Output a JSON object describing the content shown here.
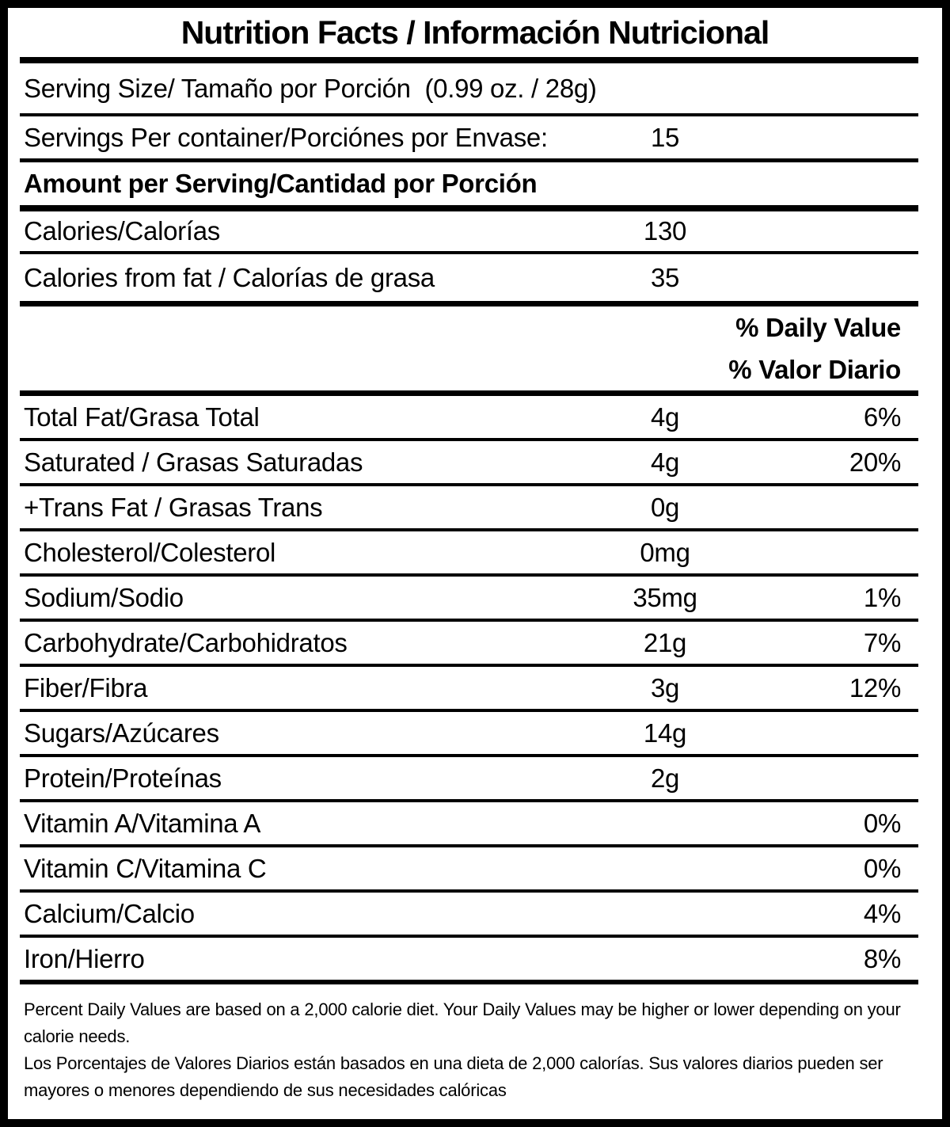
{
  "title": "Nutrition Facts / Información Nutricional",
  "serving": {
    "size_line": "Serving Size/ Tamaño por Porción  (0.99 oz. / 28g)",
    "per_container_label": "Servings Per container/Porciónes por Envase:",
    "per_container_value": "15"
  },
  "amount_per_serving_header": "Amount per Serving/Cantidad por Porción",
  "calories": {
    "label": "Calories/Calorías",
    "value": "130"
  },
  "calories_from_fat": {
    "label": "Calories from fat / Calorías de grasa",
    "value": "35"
  },
  "daily_value_header": {
    "line1": "% Daily Value",
    "line2": "% Valor Diario"
  },
  "nutrients": [
    {
      "label": "Total Fat/Grasa Total",
      "amount": "4g",
      "dv": "6%"
    },
    {
      "label": "Saturated / Grasas Saturadas",
      "amount": "4g",
      "dv": "20%"
    },
    {
      "label": "+Trans Fat / Grasas Trans",
      "amount": "0g",
      "dv": ""
    },
    {
      "label": "Cholesterol/Colesterol",
      "amount": "0mg",
      "dv": ""
    },
    {
      "label": "Sodium/Sodio",
      "amount": "35mg",
      "dv": "1%"
    },
    {
      "label": "Carbohydrate/Carbohidratos",
      "amount": "21g",
      "dv": "7%"
    },
    {
      "label": "Fiber/Fibra",
      "amount": "3g",
      "dv": "12%"
    },
    {
      "label": "Sugars/Azúcares",
      "amount": "14g",
      "dv": ""
    },
    {
      "label": "Protein/Proteínas",
      "amount": "2g",
      "dv": ""
    },
    {
      "label": "Vitamin A/Vitamina A",
      "amount": "",
      "dv": "0%"
    },
    {
      "label": "Vitamin C/Vitamina C",
      "amount": "",
      "dv": "0%"
    },
    {
      "label": "Calcium/Calcio",
      "amount": "",
      "dv": "4%"
    },
    {
      "label": "Iron/Hierro",
      "amount": "",
      "dv": "8%"
    }
  ],
  "footnotes": {
    "english": "Percent Daily Values are based on a 2,000 calorie diet. Your Daily Values may be higher or lower depending on your calorie needs.",
    "spanish": "Los Porcentajes de Valores Diarios están basados en una dieta de 2,000 calorías. Sus valores diarios pueden ser mayores o menores dependiendo de sus necesidades calóricas"
  },
  "colors": {
    "text": "#000000",
    "background": "#ffffff",
    "border": "#000000"
  }
}
